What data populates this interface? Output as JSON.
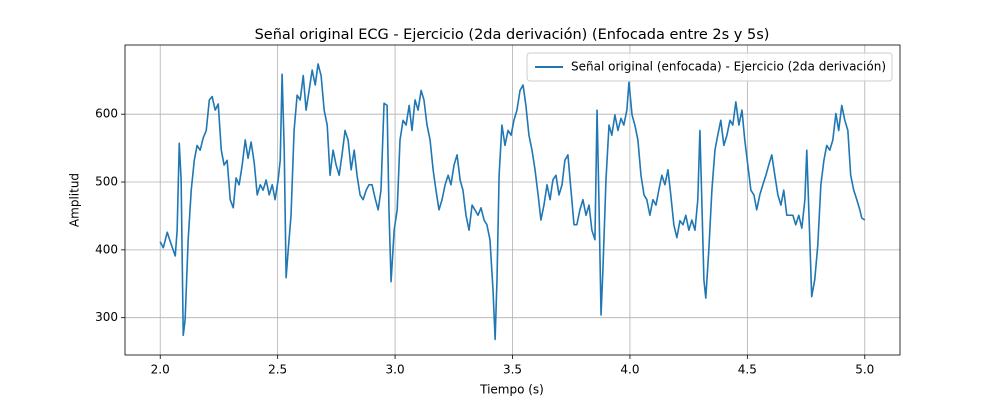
{
  "chart_data": {
    "type": "line",
    "title": "Señal original ECG - Ejercicio (2da derivación) (Enfocada entre 2s y 5s)",
    "x_label": "Tiempo (s)",
    "y_label": "Amplitud",
    "xlim": [
      1.85,
      5.15
    ],
    "ylim": [
      245,
      702
    ],
    "xticks": [
      {
        "value": 2,
        "label": "2.0"
      },
      2.5,
      {
        "value": 3,
        "label": "3.0"
      },
      3.5,
      {
        "value": 4,
        "label": "4.0"
      },
      4.5,
      {
        "value": 5,
        "label": "5.0"
      }
    ],
    "yticks": [
      300,
      400,
      500,
      600
    ],
    "grid": true,
    "legend_position": "upper right",
    "x": [
      2.0,
      2.013,
      2.03,
      2.04,
      2.055,
      2.064,
      2.072,
      2.081,
      2.089,
      2.098,
      2.106,
      2.119,
      2.132,
      2.145,
      2.157,
      2.17,
      2.183,
      2.196,
      2.209,
      2.221,
      2.234,
      2.247,
      2.26,
      2.272,
      2.285,
      2.298,
      2.311,
      2.323,
      2.336,
      2.349,
      2.362,
      2.374,
      2.387,
      2.4,
      2.413,
      2.426,
      2.438,
      2.451,
      2.464,
      2.477,
      2.489,
      2.502,
      2.511,
      2.519,
      2.528,
      2.536,
      2.545,
      2.557,
      2.57,
      2.583,
      2.596,
      2.609,
      2.621,
      2.634,
      2.647,
      2.66,
      2.672,
      2.685,
      2.698,
      2.711,
      2.723,
      2.736,
      2.749,
      2.762,
      2.774,
      2.787,
      2.8,
      2.813,
      2.826,
      2.838,
      2.851,
      2.864,
      2.877,
      2.889,
      2.902,
      2.915,
      2.928,
      2.94,
      2.953,
      2.966,
      2.974,
      2.983,
      2.996,
      3.009,
      3.021,
      3.034,
      3.047,
      3.06,
      3.072,
      3.085,
      3.098,
      3.111,
      3.123,
      3.136,
      3.149,
      3.162,
      3.174,
      3.187,
      3.2,
      3.213,
      3.226,
      3.238,
      3.251,
      3.264,
      3.277,
      3.289,
      3.302,
      3.315,
      3.328,
      3.34,
      3.353,
      3.366,
      3.379,
      3.391,
      3.404,
      3.417,
      3.426,
      3.434,
      3.443,
      3.455,
      3.468,
      3.481,
      3.494,
      3.506,
      3.519,
      3.532,
      3.545,
      3.557,
      3.57,
      3.583,
      3.596,
      3.609,
      3.621,
      3.634,
      3.647,
      3.66,
      3.672,
      3.685,
      3.698,
      3.711,
      3.723,
      3.736,
      3.749,
      3.762,
      3.774,
      3.787,
      3.8,
      3.813,
      3.826,
      3.838,
      3.851,
      3.86,
      3.868,
      3.877,
      3.885,
      3.898,
      3.911,
      3.923,
      3.936,
      3.949,
      3.962,
      3.974,
      3.987,
      3.996,
      4.009,
      4.021,
      4.034,
      4.047,
      4.06,
      4.072,
      4.085,
      4.098,
      4.111,
      4.123,
      4.136,
      4.149,
      4.162,
      4.174,
      4.187,
      4.2,
      4.213,
      4.226,
      4.238,
      4.251,
      4.264,
      4.277,
      4.289,
      4.298,
      4.306,
      4.315,
      4.323,
      4.336,
      4.349,
      4.362,
      4.374,
      4.387,
      4.4,
      4.413,
      4.426,
      4.438,
      4.451,
      4.464,
      4.477,
      4.489,
      4.502,
      4.515,
      4.528,
      4.54,
      4.553,
      4.566,
      4.579,
      4.591,
      4.604,
      4.617,
      4.63,
      4.643,
      4.655,
      4.668,
      4.681,
      4.694,
      4.706,
      4.719,
      4.732,
      4.745,
      4.753,
      4.766,
      4.774,
      4.787,
      4.8,
      4.813,
      4.826,
      4.838,
      4.851,
      4.864,
      4.877,
      4.889,
      4.902,
      4.915,
      4.928,
      4.94,
      4.953,
      4.966,
      4.979,
      4.987,
      5.0
    ],
    "series": [
      {
        "name": "Señal original (enfocada) - Ejercicio (2da derivación)",
        "color": "#1f77b4",
        "values": [
          412,
          403,
          426,
          415,
          400,
          391,
          429,
          557,
          503,
          274,
          297,
          415,
          488,
          532,
          554,
          547,
          565,
          576,
          621,
          626,
          606,
          615,
          547,
          525,
          532,
          474,
          462,
          506,
          496,
          525,
          562,
          535,
          559,
          529,
          481,
          496,
          488,
          503,
          481,
          496,
          474,
          503,
          532,
          659,
          547,
          359,
          400,
          451,
          576,
          628,
          621,
          657,
          606,
          635,
          665,
          643,
          674,
          657,
          606,
          584,
          510,
          547,
          525,
          510,
          540,
          576,
          562,
          518,
          547,
          510,
          481,
          474,
          488,
          496,
          496,
          476,
          459,
          488,
          616,
          613,
          459,
          353,
          429,
          459,
          562,
          591,
          584,
          613,
          576,
          621,
          606,
          635,
          621,
          584,
          562,
          518,
          488,
          459,
          474,
          496,
          510,
          496,
          525,
          540,
          503,
          488,
          451,
          429,
          466,
          459,
          451,
          462,
          444,
          437,
          415,
          341,
          268,
          356,
          510,
          584,
          554,
          576,
          569,
          591,
          606,
          635,
          643,
          613,
          569,
          547,
          518,
          481,
          444,
          466,
          496,
          474,
          503,
          510,
          481,
          496,
          532,
          540,
          488,
          437,
          437,
          459,
          474,
          451,
          466,
          429,
          415,
          606,
          474,
          304,
          371,
          503,
          584,
          569,
          599,
          576,
          594,
          584,
          606,
          647,
          599,
          584,
          562,
          510,
          481,
          474,
          451,
          474,
          466,
          488,
          510,
          496,
          518,
          481,
          437,
          418,
          443,
          437,
          451,
          429,
          444,
          429,
          474,
          576,
          474,
          356,
          329,
          400,
          488,
          547,
          569,
          591,
          554,
          569,
          591,
          584,
          618,
          584,
          606,
          562,
          525,
          488,
          481,
          459,
          481,
          496,
          510,
          525,
          540,
          510,
          481,
          466,
          488,
          451,
          451,
          451,
          437,
          451,
          432,
          474,
          547,
          415,
          331,
          356,
          407,
          496,
          532,
          554,
          547,
          562,
          601,
          576,
          613,
          591,
          576,
          510,
          488,
          474,
          459,
          447,
          444
        ]
      }
    ]
  }
}
